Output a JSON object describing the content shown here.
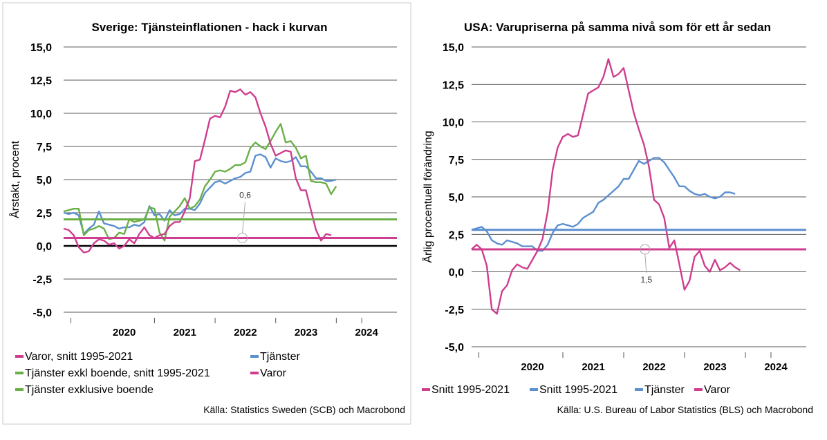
{
  "chart_data": [
    {
      "type": "line",
      "title": "Sverige: Tjänsteinflationen - hack i kurvan",
      "ylabel": "Årstakt, procent",
      "ylim": [
        -5,
        15
      ],
      "yticks": [
        "15,0",
        "12,5",
        "10,0",
        "7,5",
        "5,0",
        "2,5",
        "0,0",
        "-2,5",
        "-5,0"
      ],
      "ytick_values": [
        15,
        12.5,
        10,
        7.5,
        5,
        2.5,
        0,
        -2.5,
        -5
      ],
      "xlim": [
        2019.0,
        2024.5
      ],
      "xticks": [
        {
          "label": "2020",
          "x": 2020.0
        },
        {
          "label": "2021",
          "x": 2021.0
        },
        {
          "label": "2022",
          "x": 2022.0
        },
        {
          "label": "2023",
          "x": 2023.0
        },
        {
          "label": "2024",
          "x": 2024.0
        }
      ],
      "zero_line": true,
      "annotation": {
        "label": "0,6",
        "x": 2021.95,
        "y": 0.6
      },
      "legend_position": "bottom",
      "source": "Källa: Statistics Sweden (SCB) och Macrobond",
      "series": [
        {
          "name": "Tjänster",
          "color": "#5B8FD0",
          "start": 2019.0,
          "step": 0.0833,
          "values": [
            2.5,
            2.4,
            2.5,
            2.3,
            0.9,
            1.3,
            1.6,
            2.6,
            1.7,
            1.6,
            1.5,
            1.3,
            1.4,
            1.4,
            1.6,
            1.5,
            1.8,
            3.0,
            2.3,
            2.4,
            1.9,
            2.7,
            2.3,
            2.4,
            2.8,
            2.8,
            2.7,
            3.2,
            4.0,
            4.4,
            4.8,
            4.9,
            4.7,
            4.9,
            5.1,
            5.2,
            5.5,
            5.6,
            6.8,
            6.9,
            6.7,
            5.9,
            6.6,
            6.4,
            6.3,
            6.4,
            6.7,
            6.0,
            6.0,
            5.6,
            5.1,
            5.1,
            4.9,
            4.9,
            5.0
          ]
        },
        {
          "name": "Tjänster exklusive boende",
          "color": "#6AAF46",
          "start": 2019.0,
          "step": 0.0833,
          "values": [
            2.6,
            2.7,
            2.8,
            2.8,
            0.8,
            1.2,
            1.3,
            1.5,
            1.3,
            0.5,
            0.6,
            1.0,
            0.9,
            2.0,
            1.8,
            1.9,
            2.0,
            2.9,
            2.8,
            1.0,
            0.4,
            2.2,
            2.6,
            3.0,
            3.6,
            2.8,
            3.0,
            3.5,
            4.5,
            5.0,
            5.6,
            5.7,
            5.6,
            5.8,
            6.1,
            6.1,
            6.3,
            7.4,
            7.8,
            7.5,
            7.3,
            7.9,
            8.6,
            9.2,
            7.8,
            7.9,
            7.4,
            6.6,
            6.8,
            4.9,
            4.8,
            4.8,
            4.7,
            3.9,
            4.5
          ]
        },
        {
          "name": "Varor",
          "color": "#CF3D8E",
          "start": 2019.0,
          "step": 0.0833,
          "values": [
            1.3,
            1.2,
            0.8,
            -0.1,
            -0.5,
            -0.4,
            0.2,
            0.5,
            0.4,
            0.1,
            0.2,
            -0.2,
            0.0,
            0.5,
            0.2,
            0.9,
            1.4,
            0.8,
            0.6,
            0.8,
            0.9,
            1.5,
            1.8,
            1.8,
            2.6,
            3.6,
            6.4,
            6.5,
            8.0,
            9.6,
            9.8,
            9.7,
            10.5,
            11.7,
            11.6,
            11.8,
            11.4,
            11.6,
            11.2,
            10.0,
            9.0,
            7.7,
            6.8,
            7.0,
            7.2,
            7.1,
            5.1,
            4.2,
            4.2,
            2.7,
            1.2,
            0.4,
            0.9,
            0.8
          ]
        },
        {
          "name": "Tjänster exkl boende, snitt 1995-2021",
          "color": "#6AAF46",
          "constant": 2.0
        },
        {
          "name": "Varor, snitt 1995-2021",
          "color": "#CF3D8E",
          "constant": 0.6
        }
      ],
      "legend": [
        {
          "label": "Varor, snitt 1995-2021",
          "color": "#CF3D8E"
        },
        {
          "label": "Tjänster",
          "color": "#5B8FD0"
        },
        {
          "label": "Tjänster exkl boende, snitt 1995-2021",
          "color": "#6AAF46"
        },
        {
          "label": "Varor",
          "color": "#CF3D8E"
        },
        {
          "label": "Tjänster exklusive boende",
          "color": "#6AAF46"
        }
      ]
    },
    {
      "type": "line",
      "title": "USA: Varupriserna på samma nivå som för ett år sedan",
      "ylabel": "Årlig procentuell förändring",
      "ylim": [
        -5,
        15
      ],
      "yticks": [
        "15,0",
        "12,5",
        "10,0",
        "7,5",
        "5,0",
        "2,5",
        "0,0",
        "-2,5",
        "-5,0"
      ],
      "ytick_values": [
        15,
        12.5,
        10,
        7.5,
        5,
        2.5,
        0,
        -2.5,
        -5
      ],
      "xlim": [
        2019.0,
        2024.5
      ],
      "xticks": [
        {
          "label": "2020",
          "x": 2020.0
        },
        {
          "label": "2021",
          "x": 2021.0
        },
        {
          "label": "2022",
          "x": 2022.0
        },
        {
          "label": "2023",
          "x": 2023.0
        },
        {
          "label": "2024",
          "x": 2024.0
        }
      ],
      "annotation": {
        "label": "1,5",
        "x": 2021.85,
        "y": 1.5
      },
      "legend_position": "bottom",
      "source": "Källa: U.S. Bureau of Labor Statistics (BLS) och Macrobond",
      "series": [
        {
          "name": "Tjänster",
          "color": "#5B8FD0",
          "start": 2019.0,
          "step": 0.0833,
          "values": [
            2.8,
            2.9,
            3.0,
            2.7,
            2.1,
            1.9,
            1.8,
            2.1,
            2.0,
            1.9,
            1.7,
            1.7,
            1.7,
            1.4,
            1.4,
            1.8,
            2.6,
            3.1,
            3.2,
            3.1,
            3.0,
            3.2,
            3.6,
            3.8,
            4.0,
            4.6,
            4.8,
            5.1,
            5.4,
            5.7,
            6.2,
            6.2,
            6.8,
            7.4,
            7.2,
            7.4,
            7.6,
            7.6,
            7.3,
            6.8,
            6.3,
            5.7,
            5.7,
            5.4,
            5.2,
            5.1,
            5.2,
            5.0,
            4.9,
            5.0,
            5.3,
            5.3,
            5.2
          ]
        },
        {
          "name": "Varor",
          "color": "#CF3D8E",
          "start": 2019.0,
          "step": 0.0833,
          "values": [
            1.5,
            1.8,
            1.5,
            0.4,
            -2.5,
            -2.8,
            -1.3,
            -0.9,
            0.1,
            0.5,
            0.3,
            0.2,
            0.8,
            1.4,
            2.2,
            4.0,
            6.8,
            8.3,
            9.0,
            9.2,
            9.0,
            9.1,
            10.5,
            11.9,
            12.1,
            12.3,
            13.0,
            14.2,
            13.0,
            13.2,
            13.6,
            12.1,
            10.6,
            9.5,
            8.5,
            7.0,
            4.8,
            4.5,
            3.6,
            1.6,
            2.1,
            0.5,
            -1.2,
            -0.6,
            1.0,
            1.4,
            0.4,
            0.0,
            0.8,
            0.1,
            0.3,
            0.6,
            0.3,
            0.1
          ]
        },
        {
          "name": "Snitt 1995-2021",
          "color": "#CF3D8E",
          "constant": 1.5
        },
        {
          "name": "Snitt 1995-2021",
          "color": "#5B8FD0",
          "constant": 2.8
        }
      ],
      "legend": [
        {
          "label": "Snitt 1995-2021",
          "color": "#CF3D8E"
        },
        {
          "label": "Snitt 1995-2021",
          "color": "#5B8FD0"
        },
        {
          "label": "Tjänster",
          "color": "#5B8FD0"
        },
        {
          "label": "Varor",
          "color": "#CF3D8E"
        }
      ]
    }
  ]
}
